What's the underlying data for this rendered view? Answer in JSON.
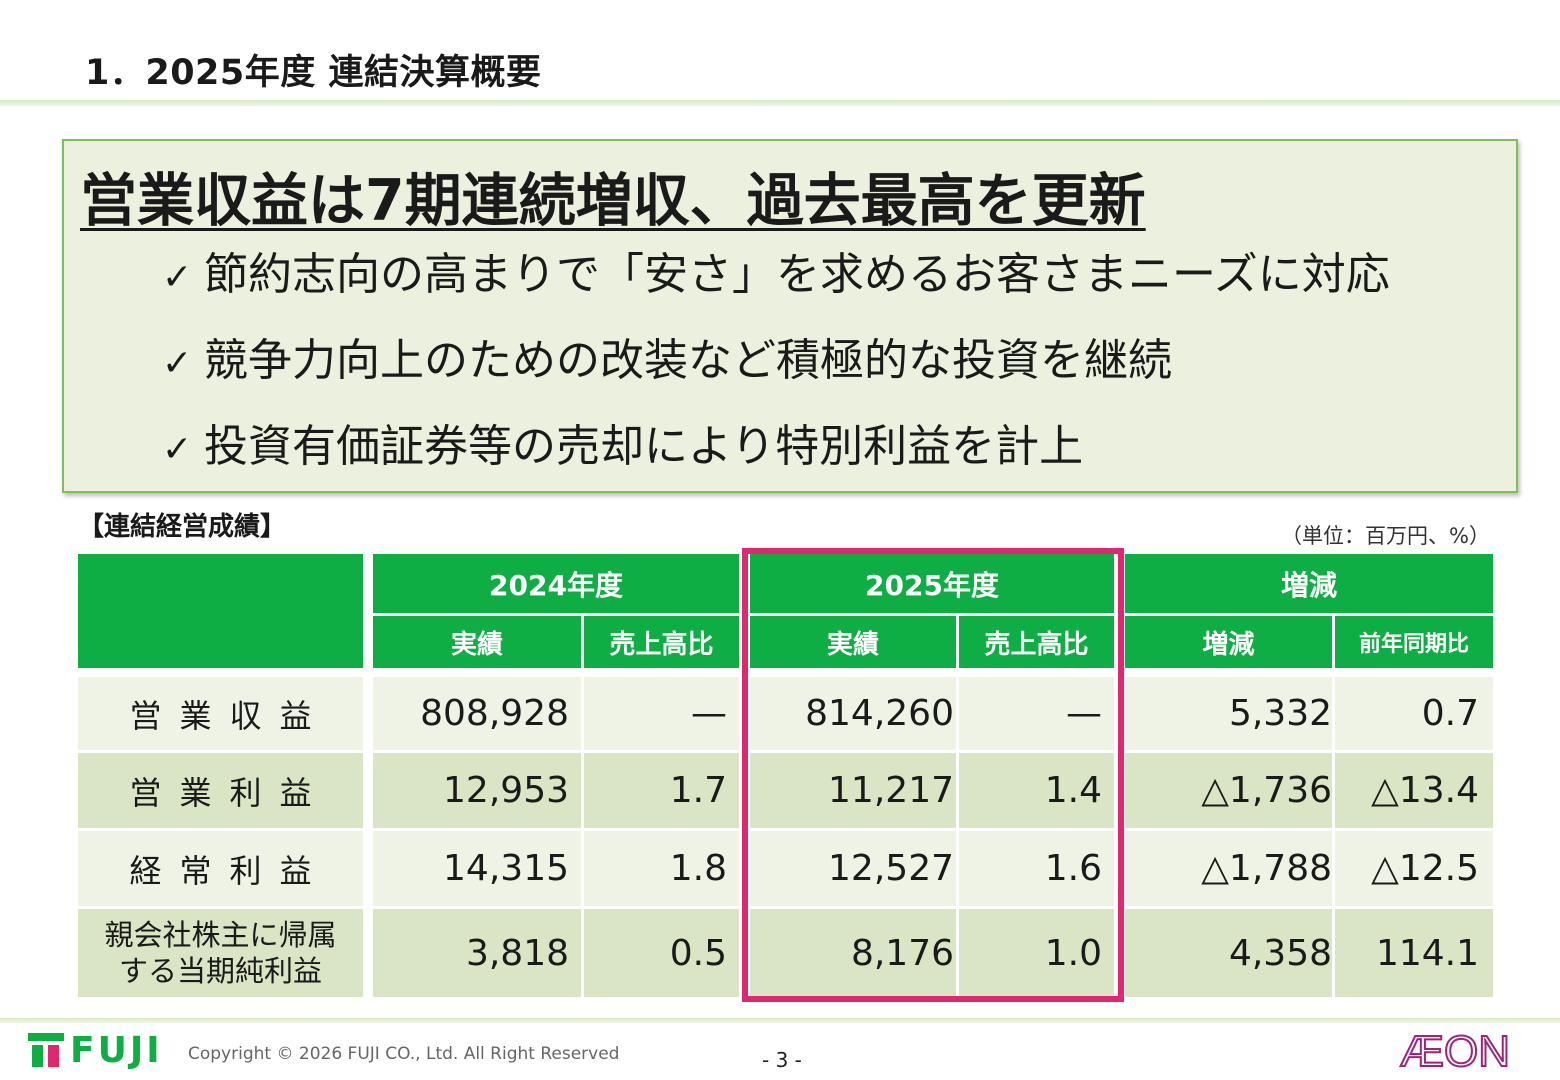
{
  "header": {
    "title": "1．2025年度 連結決算概要"
  },
  "summary": {
    "headline": "営業収益は7期連続増収、過去最高を更新",
    "check_glyph": "✓",
    "bullets": [
      "節約志向の高まりで「安さ」を求めるお客さまニーズに対応",
      "競争力向上のための改装など積極的な投資を継続",
      "投資有価証券等の売却により特別利益を計上"
    ]
  },
  "table": {
    "section_label": "【連結経営成績】",
    "unit": "（単位：百万円、%）",
    "column_groups": [
      "2024年度",
      "2025年度",
      "増減"
    ],
    "sub_headers": [
      "実績",
      "売上高比",
      "実績",
      "売上高比",
      "増減",
      "前年同期比"
    ],
    "rows": [
      {
        "label": "営業収益",
        "label_lines": [
          "営業収益"
        ],
        "values": [
          "808,928",
          "—",
          "814,260",
          "—",
          "5,332",
          "0.7"
        ]
      },
      {
        "label": "営業利益",
        "label_lines": [
          "営業利益"
        ],
        "values": [
          "12,953",
          "1.7",
          "11,217",
          "1.4",
          "△1,736",
          "△13.4"
        ]
      },
      {
        "label": "経常利益",
        "label_lines": [
          "経常利益"
        ],
        "values": [
          "14,315",
          "1.8",
          "12,527",
          "1.6",
          "△1,788",
          "△12.5"
        ]
      },
      {
        "label": "親会社株主に帰属する当期純利益",
        "label_lines": [
          "親会社株主に帰属",
          "する当期純利益"
        ],
        "values": [
          "3,818",
          "0.5",
          "8,176",
          "1.0",
          "4,358",
          "114.1"
        ]
      }
    ]
  },
  "footer": {
    "brand": "FUJI",
    "copyright": "Copyright © 2026 FUJI CO., Ltd. All Right Reserved",
    "page": "- 3 -",
    "partner_logo": "ÆON"
  },
  "colors": {
    "header_green": "#0fae45",
    "highlight_pink": "#e0286e",
    "row_light": "#eff3e6",
    "row_dark": "#d9e5c4"
  }
}
